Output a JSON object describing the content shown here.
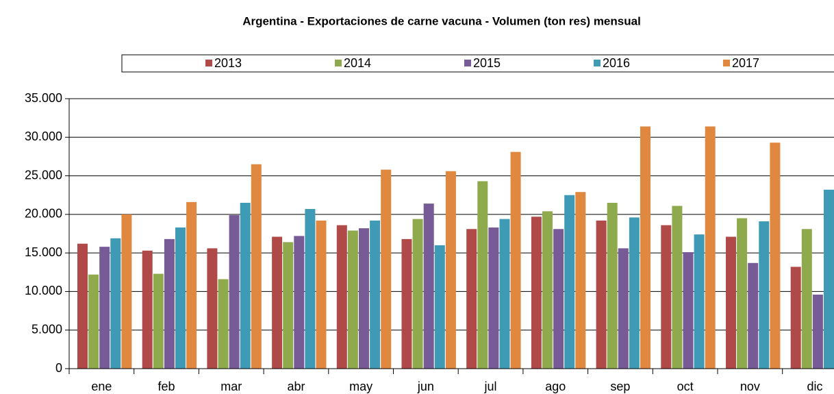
{
  "chart_data": {
    "type": "bar",
    "title": "Argentina - Exportaciones de carne vacuna - Volumen (ton res) mensual",
    "categories": [
      "ene",
      "feb",
      "mar",
      "abr",
      "may",
      "jun",
      "jul",
      "ago",
      "sep",
      "oct",
      "nov",
      "dic"
    ],
    "series": [
      {
        "name": "2013",
        "color": "#b04a48",
        "values": [
          16200,
          15300,
          15600,
          17100,
          18600,
          16800,
          18100,
          19700,
          19200,
          18600,
          17100,
          13200
        ]
      },
      {
        "name": "2014",
        "color": "#8faa4c",
        "values": [
          12200,
          12300,
          11600,
          16400,
          17900,
          19400,
          24300,
          20400,
          21500,
          21100,
          19500,
          18100
        ]
      },
      {
        "name": "2015",
        "color": "#765b96",
        "values": [
          15800,
          16800,
          19900,
          17200,
          18200,
          21400,
          18300,
          18100,
          15600,
          15100,
          13700,
          9600
        ]
      },
      {
        "name": "2016",
        "color": "#3f9ab5",
        "values": [
          16900,
          18300,
          21500,
          20700,
          19200,
          16000,
          19400,
          22500,
          19600,
          17400,
          19100,
          23200
        ]
      },
      {
        "name": "2017",
        "color": "#e0883f",
        "values": [
          20000,
          21600,
          26500,
          19200,
          25800,
          25600,
          28100,
          22900,
          31400,
          31400,
          29300,
          null
        ]
      }
    ],
    "ylim": [
      0,
      35000
    ],
    "yticks": [
      0,
      {
        "value": 5000,
        "label": "5.000"
      },
      {
        "value": 10000,
        "label": "10.000"
      },
      {
        "value": 15000,
        "label": "15.000"
      },
      {
        "value": 20000,
        "label": "20.000"
      },
      {
        "value": 25000,
        "label": "25.000"
      },
      {
        "value": 30000,
        "label": "30.000"
      },
      {
        "value": 35000,
        "label": "35.000"
      }
    ],
    "grid": true,
    "legend": "top"
  }
}
